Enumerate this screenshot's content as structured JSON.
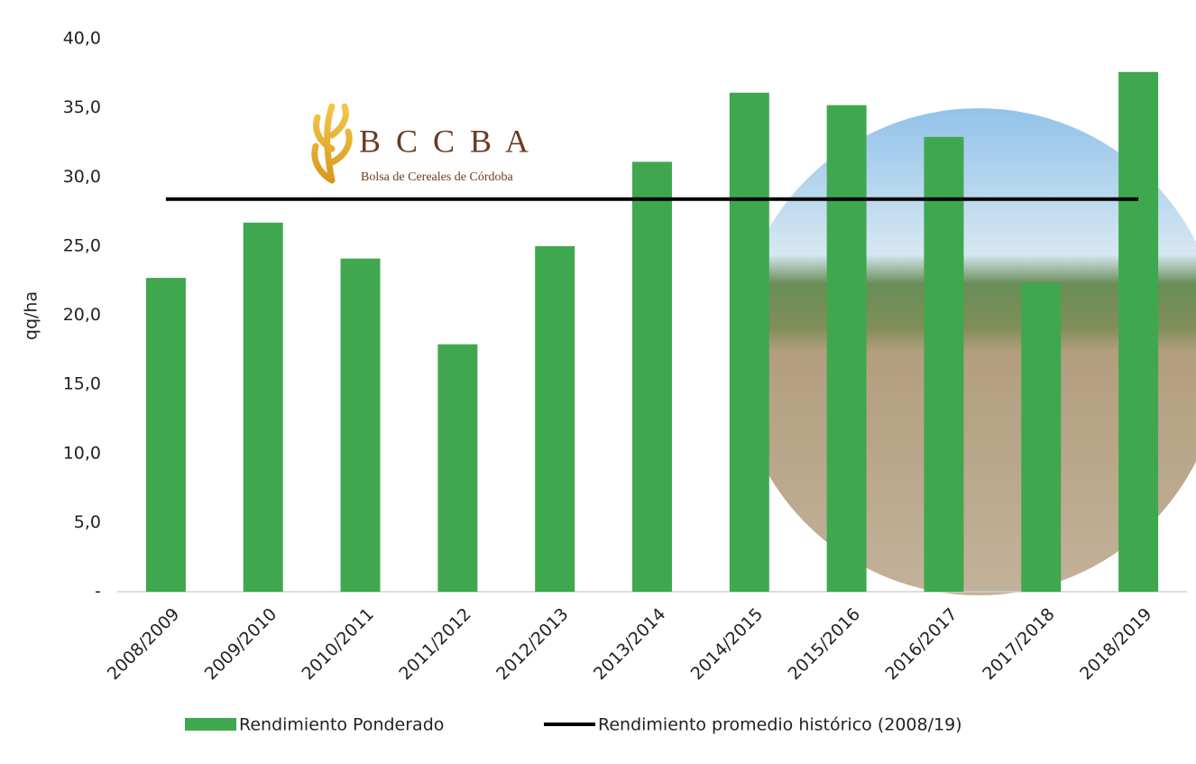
{
  "chart_data": {
    "type": "bar",
    "y_label": "qq/ha",
    "annotations": [
      "B C C B A",
      "Bolsa de Cereales de Córdoba"
    ],
    "categories": [
      "2008/2009",
      "2009/2010",
      "2010/2011",
      "2011/2012",
      "2012/2013",
      "2013/2014",
      "2014/2015",
      "2015/2016",
      "2016/2017",
      "2017/2018",
      "2018/2019"
    ],
    "series": [
      {
        "name": "Rendimiento Ponderado",
        "type": "bar",
        "color": "#3fa84f",
        "values": [
          22.7,
          26.7,
          24.1,
          17.9,
          25.0,
          31.1,
          36.1,
          35.2,
          32.9,
          22.3,
          37.6
        ]
      },
      {
        "name": "Rendimiento promedio histórico (2008/19)",
        "type": "line",
        "color": "#000000",
        "values": [
          28.4,
          28.4,
          28.4,
          28.4,
          28.4,
          28.4,
          28.4,
          28.4,
          28.4,
          28.4,
          28.4
        ]
      }
    ],
    "ylim": [
      0,
      40
    ],
    "yticks": [
      {
        "value": 0,
        "label": "-"
      },
      {
        "value": 5,
        "label": "5,0"
      },
      {
        "value": 10,
        "label": "10,0"
      },
      {
        "value": 15,
        "label": "15,0"
      },
      {
        "value": 20,
        "label": "20,0"
      },
      {
        "value": 25,
        "label": "25,0"
      },
      {
        "value": 30,
        "label": "30,0"
      },
      {
        "value": 35,
        "label": "35,0"
      },
      {
        "value": 40,
        "label": "40,0"
      }
    ],
    "grid": false
  }
}
